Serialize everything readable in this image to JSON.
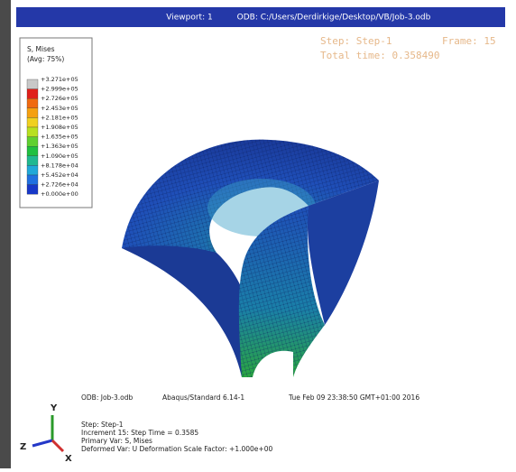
{
  "viewport": {
    "title": "Viewport: 1",
    "odb_path": "ODB: C:/Users/Derdirkige/Desktop/VB/Job-3.odb"
  },
  "status": {
    "step": "Step: Step-1",
    "frame": "Frame: 15",
    "total_time": "Total time: 0.358490"
  },
  "legend": {
    "title": "S, Mises",
    "subtitle": "(Avg: 75%)",
    "labels": [
      "+3.271e+05",
      "+2.999e+05",
      "+2.726e+05",
      "+2.453e+05",
      "+2.181e+05",
      "+1.908e+05",
      "+1.635e+05",
      "+1.363e+05",
      "+1.090e+05",
      "+8.178e+04",
      "+5.452e+04",
      "+2.726e+04",
      "+0.000e+00"
    ]
  },
  "info": {
    "odb": "ODB: Job-3.odb",
    "solver": "Abaqus/Standard 6.14-1",
    "date": "Tue Feb 09 23:38:50 GMT+01:00 2016",
    "step": "Step: Step-1",
    "increment": "Increment   15: Step Time =   0.3585",
    "primary_var": "Primary Var: S, Mises",
    "deformed_var": "Deformed Var: U   Deformation Scale Factor: +1.000e+00"
  },
  "triad": {
    "x": "X",
    "y": "Y",
    "z": "Z"
  }
}
